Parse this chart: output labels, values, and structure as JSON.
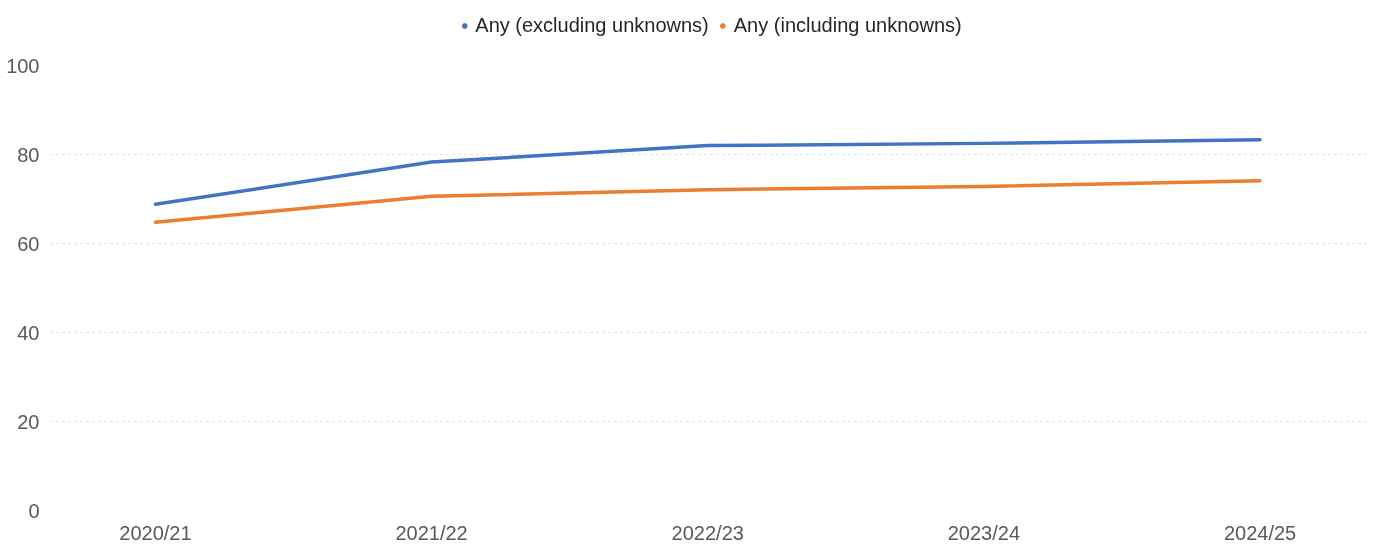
{
  "chart_data": {
    "type": "line",
    "categories": [
      "2020/21",
      "2021/22",
      "2022/23",
      "2023/24",
      "2024/25"
    ],
    "series": [
      {
        "name": "Any (excluding unknowns)",
        "color": "#4472c4",
        "values": [
          68.8,
          78.3,
          82.0,
          82.5,
          83.3
        ]
      },
      {
        "name": "Any (including unknowns)",
        "color": "#ed7d31",
        "values": [
          64.8,
          70.6,
          72.1,
          72.8,
          74.1
        ]
      }
    ],
    "ylim": [
      0,
      100
    ],
    "yticks": [
      0,
      20,
      40,
      60,
      80,
      100
    ],
    "grid": "y",
    "legend": "top",
    "line_style": "solid"
  }
}
